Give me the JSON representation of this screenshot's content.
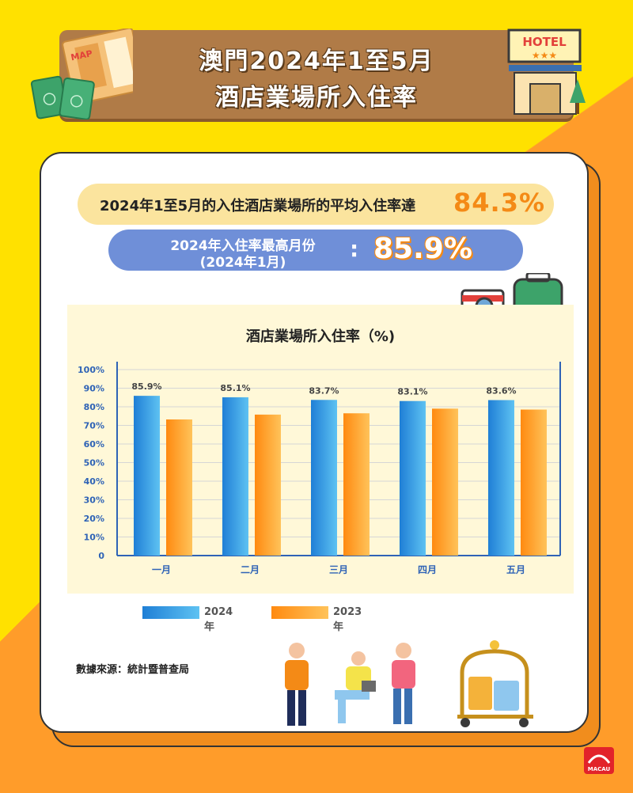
{
  "header": {
    "title_line1": "澳門2024年1至5月",
    "title_line2": "酒店業場所入住率",
    "hotel_sign": "HOTEL",
    "map_label": "MAP",
    "passport_label": "PASS PORT"
  },
  "highlights": {
    "average_text": "2024年1至5月的入住酒店業場所的平均入住率達",
    "average_value": "84.3%",
    "max_text_line1": "2024年入住率最高月份",
    "max_text_line2": "(2024年1月)",
    "max_separator": ":",
    "max_value": "85.9%"
  },
  "chart_data": {
    "type": "bar",
    "title": "酒店業場所入住率（%)",
    "categories": [
      "一月",
      "二月",
      "三月",
      "四月",
      "五月"
    ],
    "series": [
      {
        "name": "2024年",
        "values": [
          85.9,
          85.1,
          83.7,
          83.1,
          83.6
        ],
        "labels": [
          "85.9%",
          "85.1%",
          "83.7%",
          "83.1%",
          "83.6%"
        ],
        "color": "#2a8fdc"
      },
      {
        "name": "2023年",
        "values": [
          73.2,
          75.8,
          76.5,
          79.0,
          78.5
        ],
        "color": "#ff9a1f"
      }
    ],
    "ylim": [
      0,
      100
    ],
    "yticks": [
      "0",
      "10%",
      "20%",
      "30%",
      "40%",
      "50%",
      "60%",
      "70%",
      "80%",
      "90%",
      "100%"
    ],
    "grid": true,
    "legend_position": "bottom"
  },
  "footer": {
    "source": "數據來源：統計暨普查局",
    "logo_text": "MACAU"
  },
  "colors": {
    "background_yellow": "#ffe100",
    "background_orange": "#ff9c2a",
    "banner_brown": "#b07b47",
    "accent_orange": "#f48a16",
    "pill_blue": "#6f8fd8"
  }
}
